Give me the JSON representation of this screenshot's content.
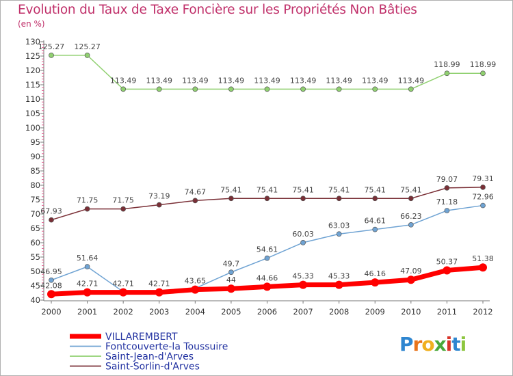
{
  "title": "Evolution du Taux de Taxe Foncière sur les Propriétés Non Bâties",
  "unit_label": "(en %)",
  "logo": {
    "letters": [
      "P",
      "r",
      "o",
      "x",
      "i",
      "t",
      "i"
    ],
    "colors": [
      "#2f86d0",
      "#e8731a",
      "#f0b020",
      "#4aa83a",
      "#d8342a",
      "#2f86d0",
      "#8dc63f"
    ]
  },
  "chart_data": {
    "type": "line",
    "title": "Evolution du Taux de Taxe Foncière sur les Propriétés Non Bâties",
    "ylabel": "(en %)",
    "xlabel": "",
    "categories": [
      "2000",
      "2001",
      "2002",
      "2003",
      "2004",
      "2005",
      "2006",
      "2007",
      "2008",
      "2009",
      "2010",
      "2011",
      "2012"
    ],
    "ylim": [
      40,
      130
    ],
    "yticks": [
      40,
      45,
      50,
      55,
      60,
      65,
      70,
      75,
      80,
      85,
      90,
      95,
      100,
      105,
      110,
      115,
      120,
      125,
      130
    ],
    "grid": false,
    "legend_position": "bottom-left",
    "series": [
      {
        "name": "VILLAREMBERT",
        "color": "#ff0000",
        "values": [
          42.08,
          42.71,
          42.71,
          42.71,
          43.65,
          44,
          44.66,
          45.33,
          45.33,
          46.16,
          47.09,
          50.37,
          51.38
        ],
        "labels": [
          "42.08",
          "42.71",
          "42.71",
          "42.71",
          "43.65",
          "44",
          "44.66",
          "45.33",
          "45.33",
          "46.16",
          "47.09",
          "50.37",
          "51.38"
        ]
      },
      {
        "name": "Fontcouverte-la Toussuire",
        "color": "#6fa3d3",
        "values": [
          46.95,
          51.64,
          42.9,
          42.9,
          44.1,
          49.7,
          54.61,
          60.03,
          63.03,
          64.61,
          66.23,
          71.18,
          72.96
        ],
        "labels": [
          "46.95",
          "51.64",
          "",
          "",
          "",
          "49.7",
          "54.61",
          "60.03",
          "63.03",
          "64.61",
          "66.23",
          "71.18",
          "72.96"
        ]
      },
      {
        "name": "Saint-Jean-d'Arves",
        "color": "#90d070",
        "values": [
          125.27,
          125.27,
          113.49,
          113.49,
          113.49,
          113.49,
          113.49,
          113.49,
          113.49,
          113.49,
          113.49,
          118.99,
          118.99
        ],
        "labels": [
          "125.27",
          "125.27",
          "113.49",
          "113.49",
          "113.49",
          "113.49",
          "113.49",
          "113.49",
          "113.49",
          "113.49",
          "113.49",
          "118.99",
          "118.99"
        ]
      },
      {
        "name": "Saint-Sorlin-d'Arves",
        "color": "#7a2f36",
        "values": [
          67.93,
          71.75,
          71.75,
          73.19,
          74.67,
          75.41,
          75.41,
          75.41,
          75.41,
          75.41,
          75.41,
          79.07,
          79.31
        ],
        "labels": [
          "67.93",
          "71.75",
          "71.75",
          "73.19",
          "74.67",
          "75.41",
          "75.41",
          "75.41",
          "75.41",
          "75.41",
          "75.41",
          "79.07",
          "79.31"
        ]
      }
    ]
  }
}
